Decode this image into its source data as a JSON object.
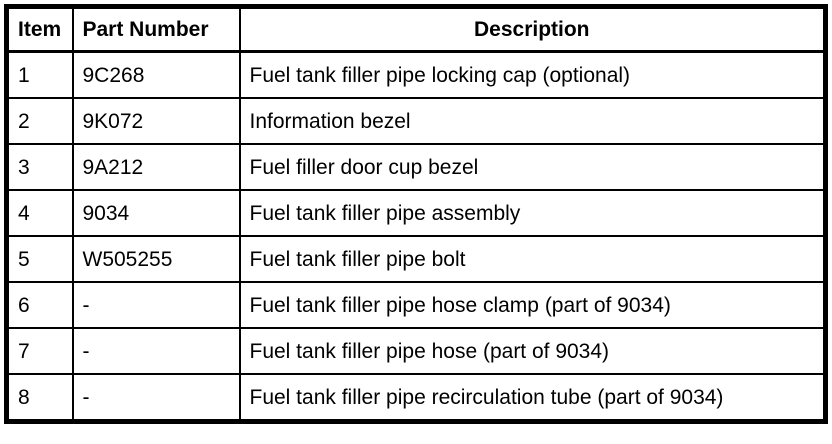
{
  "table": {
    "columns": [
      {
        "label": "Item"
      },
      {
        "label": "Part Number"
      },
      {
        "label": "Description"
      }
    ],
    "rows": [
      {
        "item": "1",
        "part_number": "9C268",
        "description": "Fuel tank filler pipe locking cap (optional)"
      },
      {
        "item": "2",
        "part_number": "9K072",
        "description": "Information bezel"
      },
      {
        "item": "3",
        "part_number": "9A212",
        "description": "Fuel filler door cup bezel"
      },
      {
        "item": "4",
        "part_number": "9034",
        "description": "Fuel tank filler pipe assembly"
      },
      {
        "item": "5",
        "part_number": "W505255",
        "description": "Fuel tank filler pipe bolt"
      },
      {
        "item": "6",
        "part_number": "-",
        "description": "Fuel tank filler pipe hose clamp (part of 9034)"
      },
      {
        "item": "7",
        "part_number": "-",
        "description": "Fuel tank filler pipe hose (part of 9034)"
      },
      {
        "item": "8",
        "part_number": "-",
        "description": "Fuel tank filler pipe recirculation tube (part of 9034)"
      }
    ]
  },
  "colors": {
    "border": "#000000",
    "text": "#000000",
    "background": "#ffffff"
  }
}
